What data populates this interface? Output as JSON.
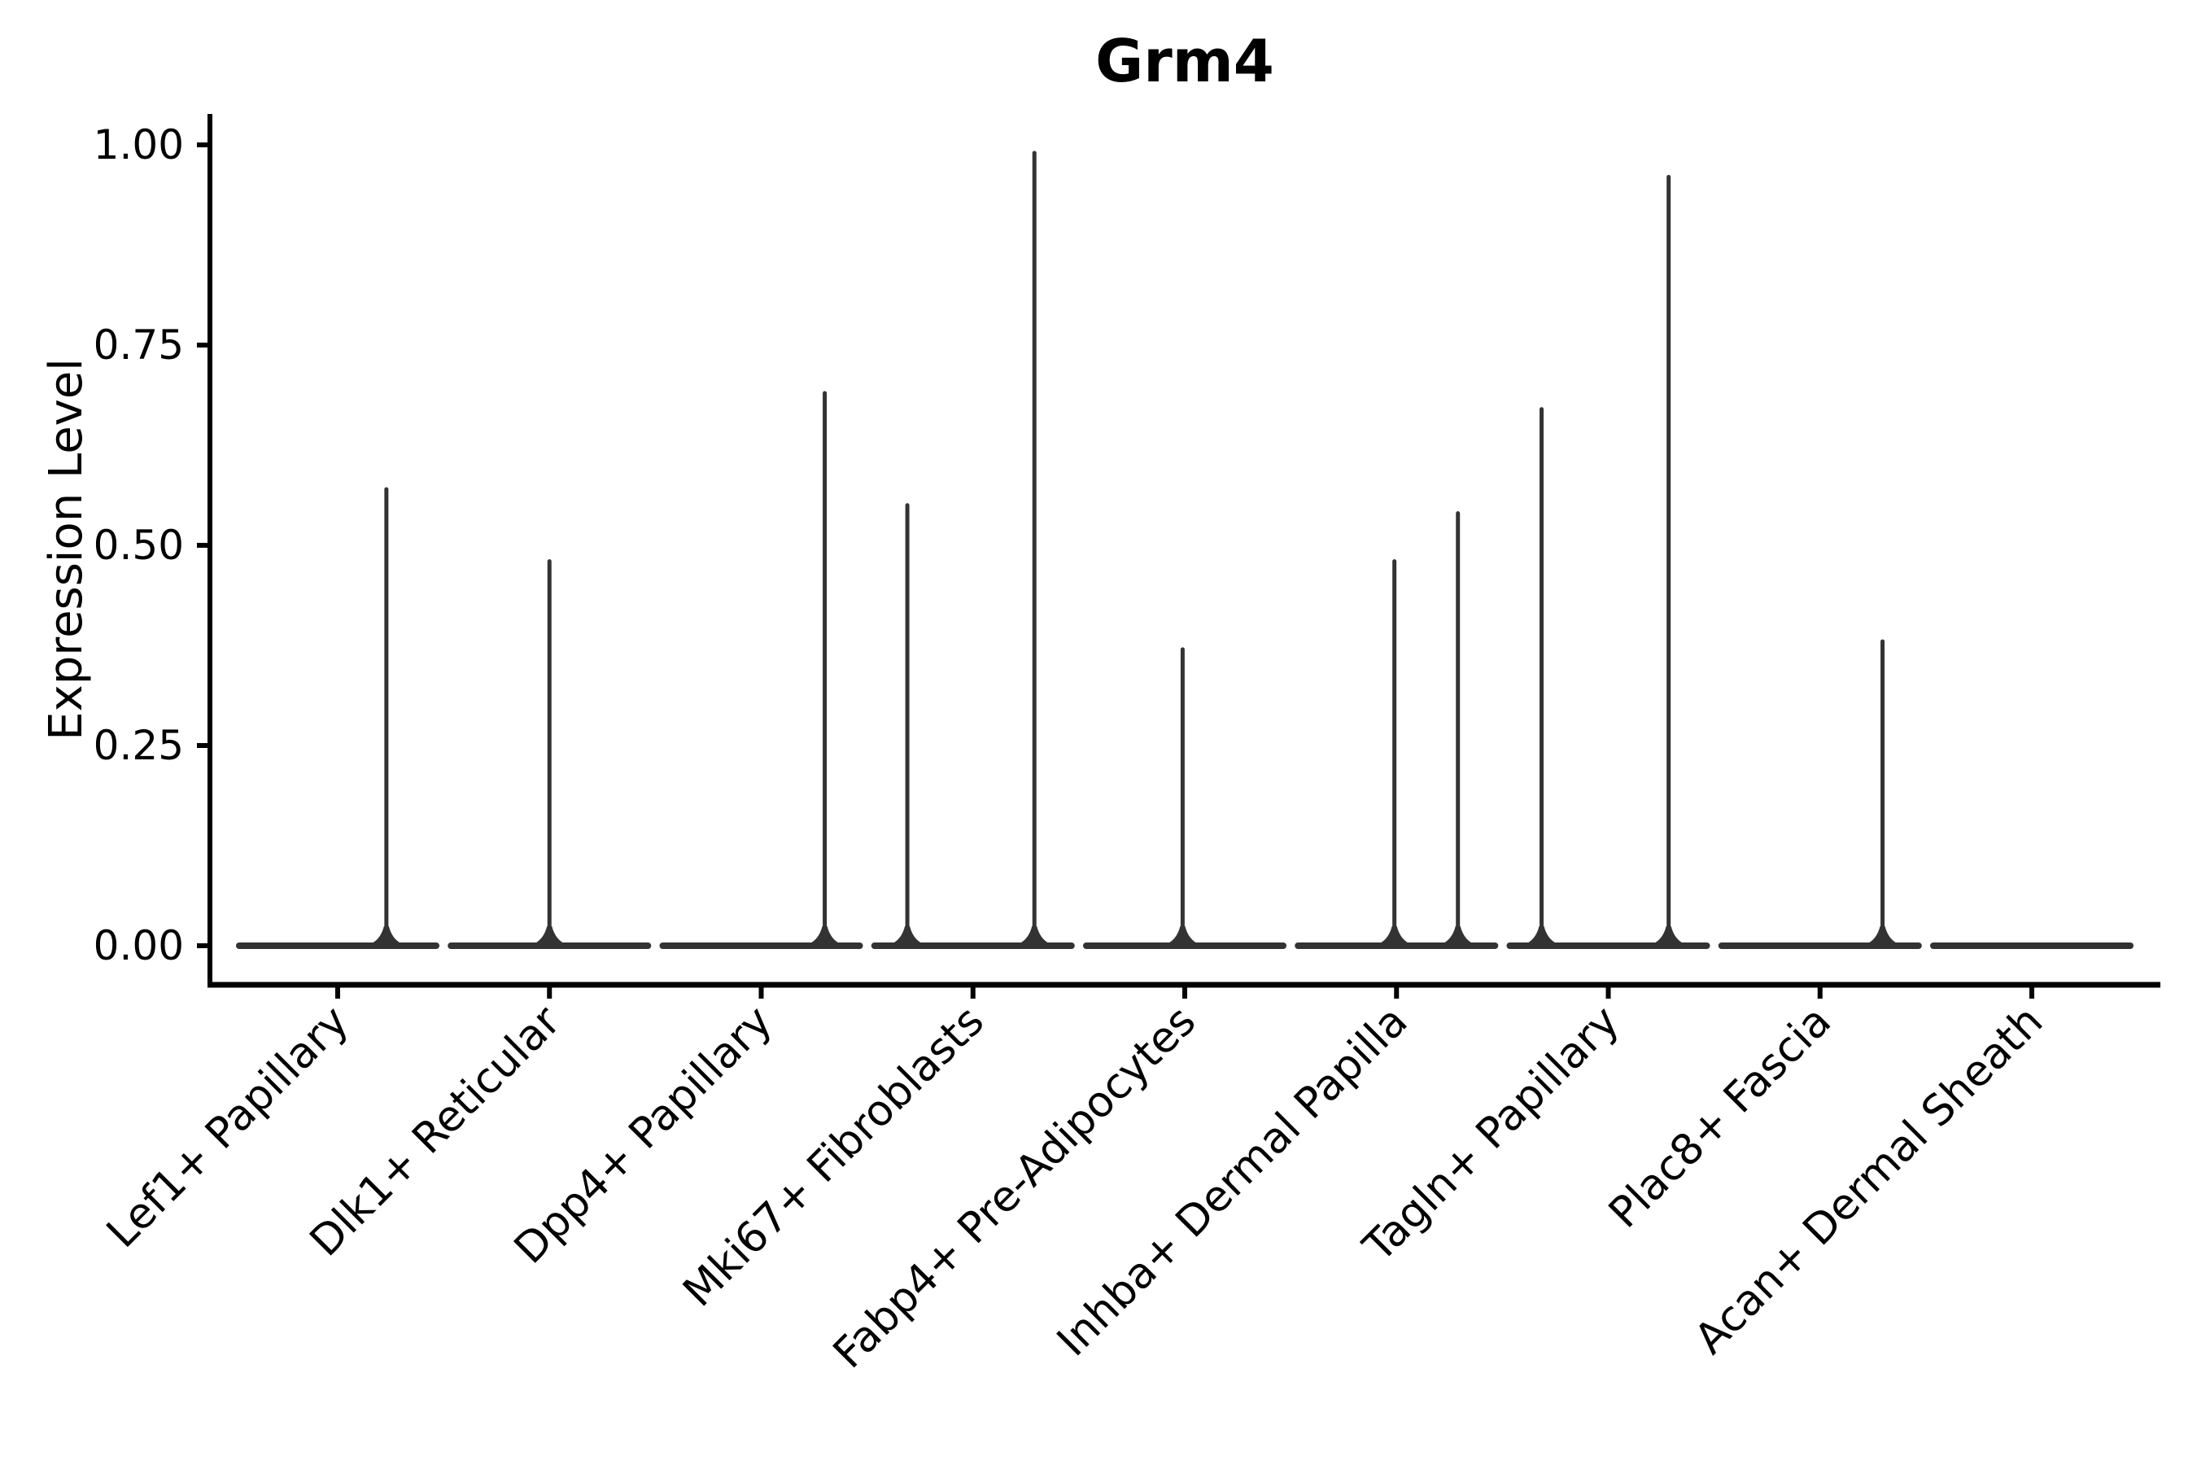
{
  "figure": {
    "background": "#ffffff",
    "title": "Grm4"
  },
  "chart_data": {
    "type": "violin",
    "title": "Grm4",
    "xlabel": "",
    "ylabel": "Expression Level",
    "ylim": [
      0,
      1.0
    ],
    "yticks": [
      1.0,
      0.75,
      0.5,
      0.25,
      0.0
    ],
    "ytick_labels": [
      "1.00",
      "0.75",
      "0.50",
      "0.25",
      "0.00"
    ],
    "grid": false,
    "legend": "none",
    "violin_color": "#333333",
    "axis_color": "#000000",
    "xtick_label_rotation_deg": 45,
    "body_halfwidth_frac": 0.465,
    "categories": [
      "Lef1+ Papillary",
      "Dlk1+ Reticular",
      "Dpp4+ Papillary",
      "Mki67+ Fibroblasts",
      "Fabp4+ Pre-Adipocytes",
      "Inhba+ Dermal Papilla",
      "Tagln+ Papillary",
      "Plac8+ Fascia",
      "Acan+ Dermal Sheath"
    ],
    "series": [
      {
        "category": "Lef1+ Papillary",
        "baseline_value": 0.0,
        "spikes": [
          {
            "x_offset_frac": 0.23,
            "max_expression": 0.57
          }
        ]
      },
      {
        "category": "Dlk1+ Reticular",
        "baseline_value": 0.0,
        "spikes": [
          {
            "x_offset_frac": 0.0,
            "max_expression": 0.48
          }
        ]
      },
      {
        "category": "Dpp4+ Papillary",
        "baseline_value": 0.0,
        "spikes": [
          {
            "x_offset_frac": 0.3,
            "max_expression": 0.69
          }
        ]
      },
      {
        "category": "Mki67+ Fibroblasts",
        "baseline_value": 0.0,
        "spikes": [
          {
            "x_offset_frac": -0.31,
            "max_expression": 0.55
          },
          {
            "x_offset_frac": 0.29,
            "max_expression": 0.99
          }
        ]
      },
      {
        "category": "Fabp4+ Pre-Adipocytes",
        "baseline_value": 0.0,
        "spikes": [
          {
            "x_offset_frac": -0.01,
            "max_expression": 0.37
          }
        ]
      },
      {
        "category": "Inhba+ Dermal Papilla",
        "baseline_value": 0.0,
        "spikes": [
          {
            "x_offset_frac": -0.01,
            "max_expression": 0.48
          },
          {
            "x_offset_frac": 0.29,
            "max_expression": 0.54
          }
        ]
      },
      {
        "category": "Tagln+ Papillary",
        "baseline_value": 0.0,
        "spikes": [
          {
            "x_offset_frac": -0.315,
            "max_expression": 0.67
          },
          {
            "x_offset_frac": 0.285,
            "max_expression": 0.96
          }
        ]
      },
      {
        "category": "Plac8+ Fascia",
        "baseline_value": 0.0,
        "spikes": [
          {
            "x_offset_frac": 0.295,
            "max_expression": 0.38
          }
        ]
      },
      {
        "category": "Acan+ Dermal Sheath",
        "baseline_value": 0.0,
        "spikes": []
      }
    ]
  }
}
